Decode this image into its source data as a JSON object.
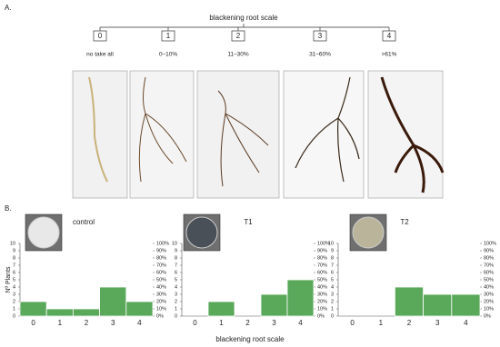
{
  "panel_a": {
    "label": "A.",
    "title": "blackening root scale",
    "scale": [
      {
        "level": "0",
        "label": "no take all"
      },
      {
        "level": "1",
        "label": "0–10%"
      },
      {
        "level": "2",
        "label": "11–30%"
      },
      {
        "level": "3",
        "label": "31–60%"
      },
      {
        "level": "4",
        "label": ">61%"
      }
    ]
  },
  "panel_b": {
    "label": "B.",
    "ylabel": "Nº Plants",
    "xlabel": "blackening root scale"
  },
  "chart_data": [
    {
      "type": "bar",
      "title": "control",
      "categories": [
        "0",
        "1",
        "2",
        "3",
        "4"
      ],
      "values": [
        2,
        1,
        1,
        4,
        2
      ],
      "color": "#5aa85a",
      "ylim": [
        0,
        10
      ],
      "yticks": [
        0,
        1,
        2,
        3,
        4,
        5,
        6,
        7,
        8,
        9,
        10
      ],
      "y2lim": [
        0,
        100
      ],
      "y2ticks": [
        {
          "value": 0,
          "label": "0%"
        },
        {
          "value": 10,
          "label": "10%"
        },
        {
          "value": 20,
          "label": "20%"
        },
        {
          "value": 30,
          "label": "30%"
        },
        {
          "value": 40,
          "label": "40%"
        },
        {
          "value": 50,
          "label": "50%"
        },
        {
          "value": 60,
          "label": "60%"
        },
        {
          "value": 70,
          "label": "70%"
        },
        {
          "value": 80,
          "label": "80%"
        },
        {
          "value": 90,
          "label": "90%"
        },
        {
          "value": 100,
          "label": "100%"
        }
      ]
    },
    {
      "type": "bar",
      "title": "T1",
      "categories": [
        "0",
        "1",
        "2",
        "3",
        "4"
      ],
      "values": [
        0,
        2,
        0,
        3,
        5
      ],
      "color": "#5aa85a",
      "ylim": [
        0,
        10
      ],
      "yticks": [
        0,
        1,
        2,
        3,
        4,
        5,
        6,
        7,
        8,
        9,
        10
      ],
      "y2lim": [
        0,
        100
      ],
      "y2ticks": [
        {
          "value": 0,
          "label": "0%"
        },
        {
          "value": 10,
          "label": "10%"
        },
        {
          "value": 20,
          "label": "20%"
        },
        {
          "value": 30,
          "label": "30%"
        },
        {
          "value": 40,
          "label": "40%"
        },
        {
          "value": 50,
          "label": "50%"
        },
        {
          "value": 60,
          "label": "60%"
        },
        {
          "value": 70,
          "label": "70%"
        },
        {
          "value": 80,
          "label": "80%"
        },
        {
          "value": 90,
          "label": "90%"
        },
        {
          "value": 100,
          "label": "100%"
        }
      ]
    },
    {
      "type": "bar",
      "title": "T2",
      "categories": [
        "0",
        "1",
        "2",
        "3",
        "4"
      ],
      "values": [
        0,
        0,
        4,
        3,
        3
      ],
      "color": "#5aa85a",
      "ylim": [
        0,
        10
      ],
      "yticks": [
        0,
        1,
        2,
        3,
        4,
        5,
        6,
        7,
        8,
        9,
        10
      ],
      "y2lim": [
        0,
        100
      ],
      "y2ticks": [
        {
          "value": 0,
          "label": "0%"
        },
        {
          "value": 10,
          "label": "10%"
        },
        {
          "value": 20,
          "label": "20%"
        },
        {
          "value": 30,
          "label": "30%"
        },
        {
          "value": 40,
          "label": "40%"
        },
        {
          "value": 50,
          "label": "50%"
        },
        {
          "value": 60,
          "label": "60%"
        },
        {
          "value": 70,
          "label": "70%"
        },
        {
          "value": 80,
          "label": "80%"
        },
        {
          "value": 90,
          "label": "90%"
        },
        {
          "value": 100,
          "label": "100%"
        }
      ]
    }
  ]
}
